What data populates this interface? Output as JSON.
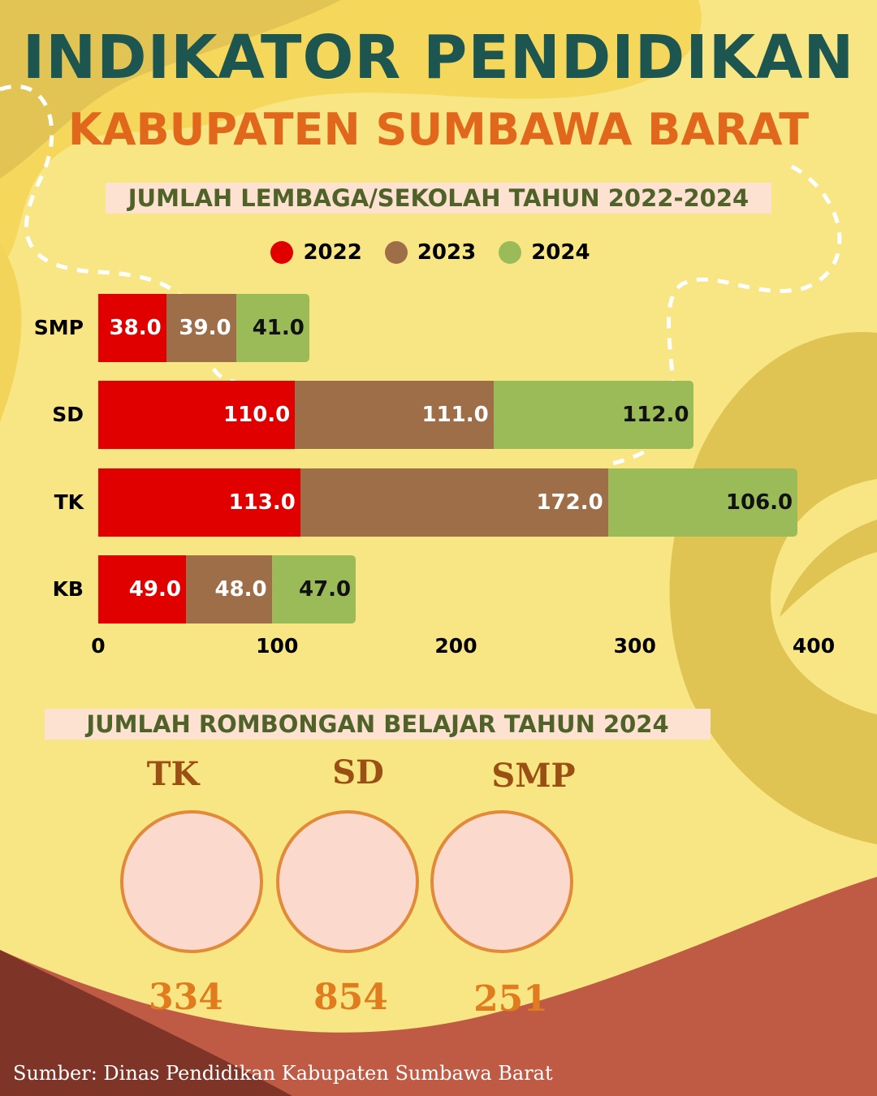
{
  "header": {
    "title": "INDIKATOR PENDIDIKAN",
    "subtitle": "KABUPATEN SUMBAWA BARAT"
  },
  "section1": {
    "title": "JUMLAH LEMBAGA/SEKOLAH TAHUN 2022-2024"
  },
  "chart_data": {
    "type": "bar",
    "orientation": "horizontal",
    "stacked": true,
    "categories": [
      "SMP",
      "SD",
      "TK",
      "KB"
    ],
    "series": [
      {
        "name": "2022",
        "color": "#e00000",
        "values": [
          38.0,
          110.0,
          113.0,
          49.0
        ],
        "labels": [
          "38.0",
          "110.0",
          "113.0",
          "49.0"
        ]
      },
      {
        "name": "2023",
        "color": "#9e6e48",
        "values": [
          39.0,
          111.0,
          172.0,
          48.0
        ],
        "labels": [
          "39.0",
          "111.0",
          "172.0",
          "48.0"
        ]
      },
      {
        "name": "2024",
        "color": "#9bbb59",
        "values": [
          41.0,
          112.0,
          106.0,
          47.0
        ],
        "labels": [
          "41.0",
          "112.0",
          "106.0",
          "47.0"
        ]
      }
    ],
    "xlim": [
      0,
      400
    ],
    "xticks": [
      "0",
      "100",
      "200",
      "300",
      "400"
    ],
    "legend": "top",
    "grid": false
  },
  "section2": {
    "title": "JUMLAH ROMBONGAN BELAJAR TAHUN 2024",
    "items": [
      {
        "label": "TK",
        "value": "334"
      },
      {
        "label": "SD",
        "value": "854"
      },
      {
        "label": "SMP",
        "value": "251"
      }
    ]
  },
  "footer": {
    "source": "Sumber: Dinas Pendidikan Kabupaten Sumbawa Barat"
  }
}
